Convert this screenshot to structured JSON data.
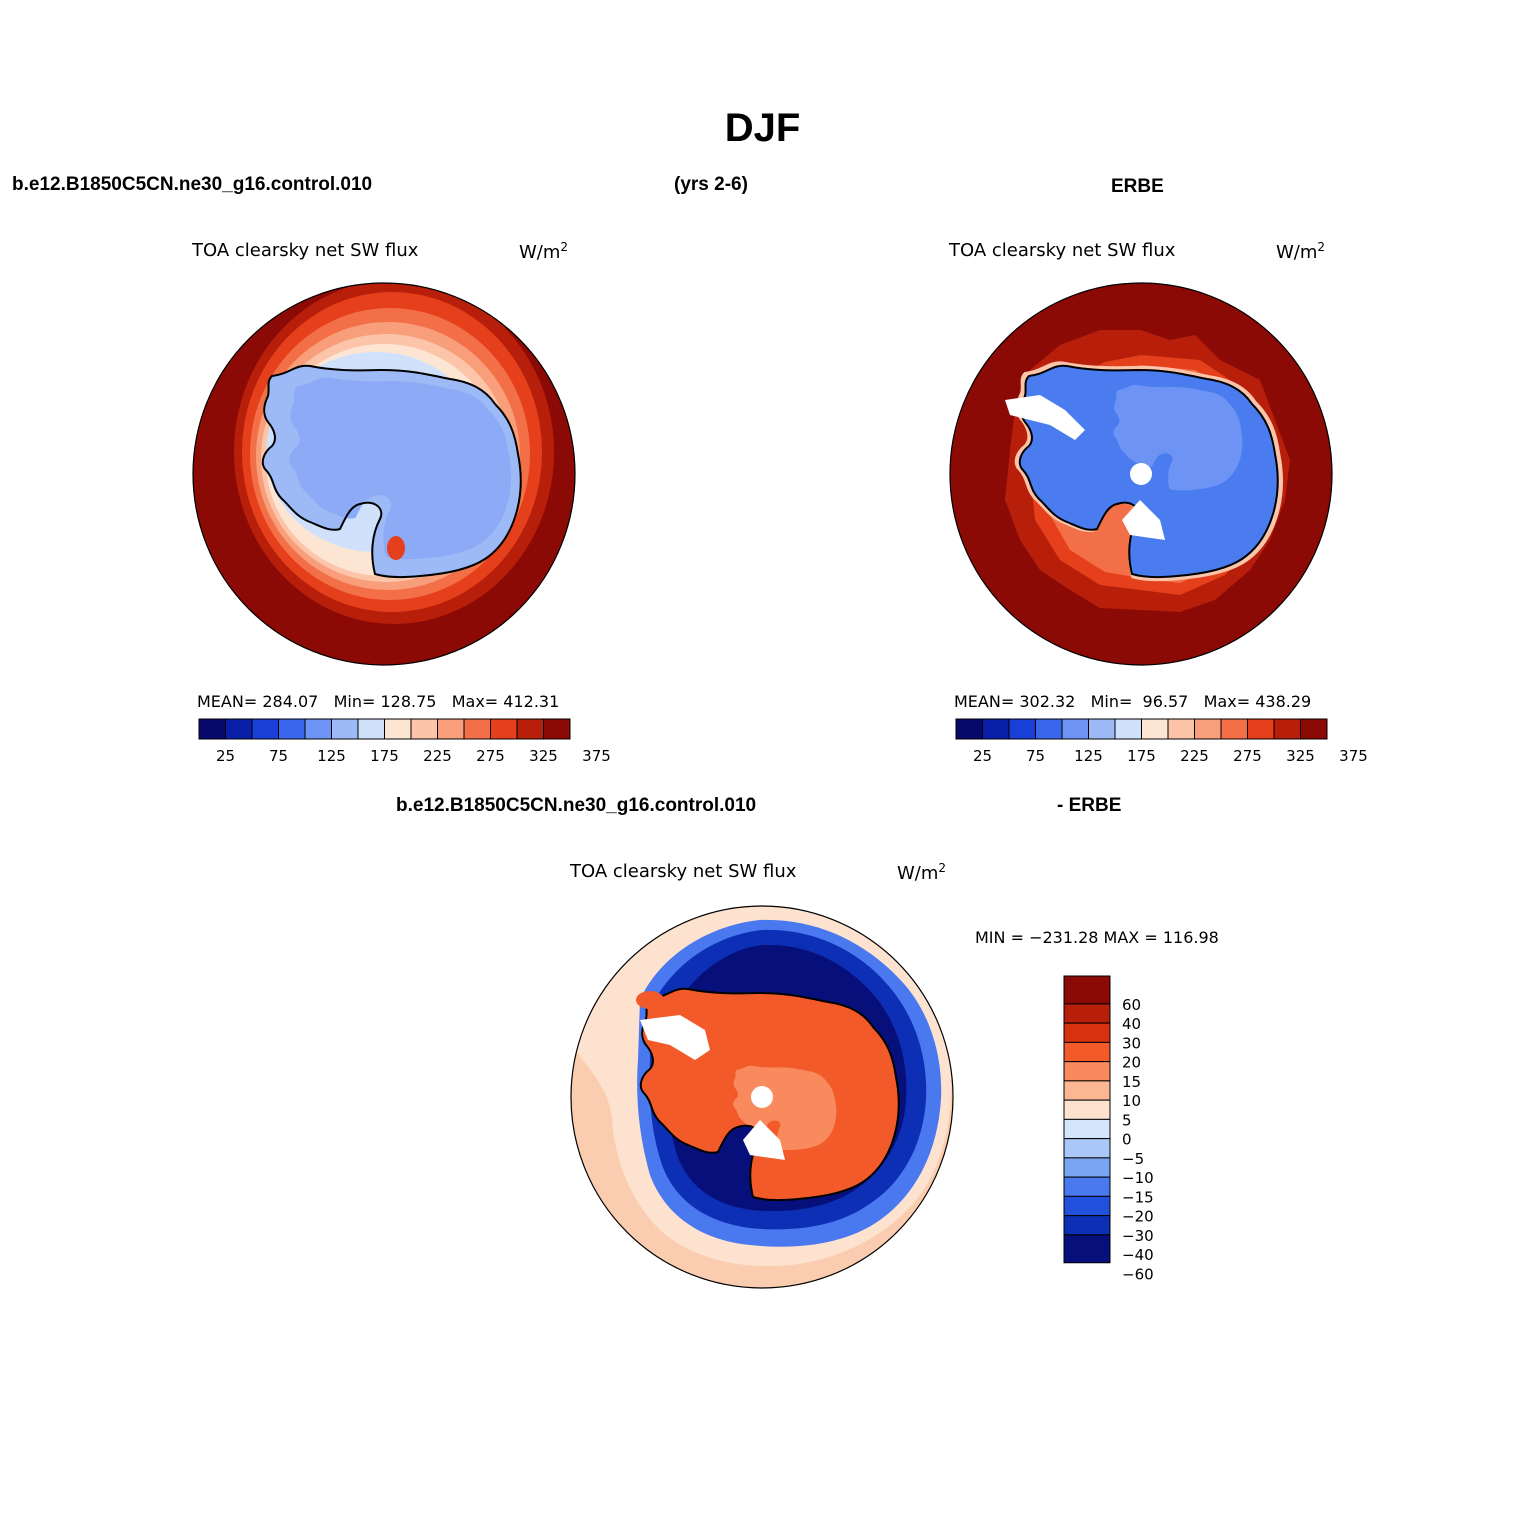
{
  "title": "DJF",
  "header": {
    "case_name": "b.e12.B1850C5CN.ne30_g16.control.010",
    "years": "(yrs 2-6)",
    "obs_name": "ERBE"
  },
  "diff_header": {
    "case_name": "b.e12.B1850C5CN.ne30_g16.control.010",
    "obs_suffix": "- ERBE"
  },
  "panels": [
    {
      "variable": "TOA clearsky net SW flux",
      "units": "W/m",
      "units_sup": "2",
      "stats": {
        "mean_label": "MEAN=",
        "mean": "284.07",
        "min_label": "Min=",
        "min": "128.75",
        "max_label": "Max=",
        "max": "412.31"
      }
    },
    {
      "variable": "TOA clearsky net SW flux",
      "units": "W/m",
      "units_sup": "2",
      "stats": {
        "mean_label": "MEAN=",
        "mean": "302.32",
        "min_label": "Min=",
        "min": "96.57",
        "max_label": "Max=",
        "max": "438.29"
      }
    },
    {
      "variable": "TOA clearsky net SW flux",
      "units": "W/m",
      "units_sup": "2",
      "stats_line": "MIN = −231.28 MAX = 116.98"
    }
  ],
  "colorbar_abs": {
    "colors": [
      "#08086b",
      "#0a1fa8",
      "#1840d8",
      "#3a66ee",
      "#6d94f5",
      "#9dbaf7",
      "#cfe1fb",
      "#fde5d4",
      "#fcc5aa",
      "#f89e7a",
      "#f36f47",
      "#e53f1b",
      "#b71f0a",
      "#8b0a05"
    ],
    "labels": [
      "25",
      "75",
      "125",
      "175",
      "225",
      "275",
      "325",
      "375"
    ]
  },
  "colorbar_diff": {
    "colors": [
      "#8b0a05",
      "#b71f0a",
      "#d6320f",
      "#f25a2a",
      "#f88a5e",
      "#fbb694",
      "#fde2cf",
      "#d4e6fb",
      "#a9c8f7",
      "#7aa5f2",
      "#4a78ee",
      "#2050dc",
      "#0c2fb5",
      "#07107a"
    ],
    "labels": [
      "60",
      "40",
      "30",
      "20",
      "15",
      "10",
      "5",
      "0",
      "−5",
      "−10",
      "−15",
      "−20",
      "−30",
      "−40",
      "−60"
    ]
  },
  "map_colors": {
    "ocean_warm": "#8b0a05",
    "ice_model": "#8caaf5",
    "ice_obs": "#4a7cf0",
    "diff_ice": "#f25a2a",
    "diff_negative": "#07107a",
    "diff_positive": "#fbcdb0"
  }
}
